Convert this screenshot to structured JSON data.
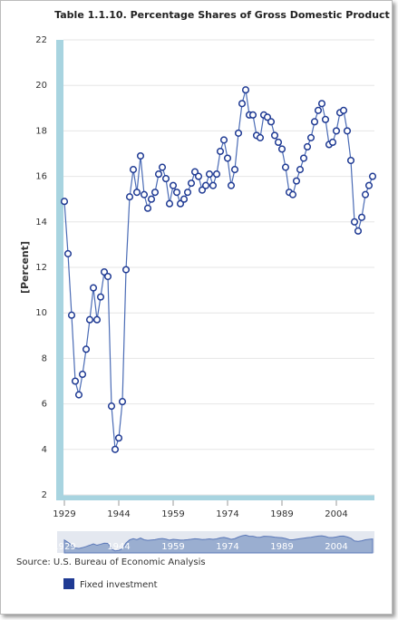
{
  "chart_data": {
    "type": "line",
    "title": "Table 1.1.10. Percentage Shares of Gross Domestic Product",
    "y_label": "[Percent]",
    "source": "Source: U.S. Bureau of Economic Analysis",
    "x": [
      1929,
      1930,
      1931,
      1932,
      1933,
      1934,
      1935,
      1936,
      1937,
      1938,
      1939,
      1940,
      1941,
      1942,
      1943,
      1944,
      1945,
      1946,
      1947,
      1948,
      1949,
      1950,
      1951,
      1952,
      1953,
      1954,
      1955,
      1956,
      1957,
      1958,
      1959,
      1960,
      1961,
      1962,
      1963,
      1964,
      1965,
      1966,
      1967,
      1968,
      1969,
      1970,
      1971,
      1972,
      1973,
      1974,
      1975,
      1976,
      1977,
      1978,
      1979,
      1980,
      1981,
      1982,
      1983,
      1984,
      1985,
      1986,
      1987,
      1988,
      1989,
      1990,
      1991,
      1992,
      1993,
      1994,
      1995,
      1996,
      1997,
      1998,
      1999,
      2000,
      2001,
      2002,
      2003,
      2004,
      2005,
      2006,
      2007,
      2008,
      2009,
      2010,
      2011,
      2012,
      2013,
      2014
    ],
    "series": [
      {
        "name": "Fixed investment",
        "color": "#1f3a93",
        "values": [
          14.9,
          12.6,
          9.9,
          7.0,
          6.4,
          7.3,
          8.4,
          9.7,
          11.1,
          9.7,
          10.7,
          11.8,
          11.6,
          5.9,
          4.0,
          4.5,
          6.1,
          11.9,
          15.1,
          16.3,
          15.3,
          16.9,
          15.2,
          14.6,
          15.0,
          15.3,
          16.1,
          16.4,
          15.9,
          14.8,
          15.6,
          15.3,
          14.8,
          15.0,
          15.3,
          15.7,
          16.2,
          16.0,
          15.4,
          15.6,
          16.1,
          15.6,
          16.1,
          17.1,
          17.6,
          16.8,
          15.6,
          16.3,
          17.9,
          19.2,
          19.8,
          18.7,
          18.7,
          17.8,
          17.7,
          18.7,
          18.6,
          18.4,
          17.8,
          17.5,
          17.2,
          16.4,
          15.3,
          15.2,
          15.8,
          16.3,
          16.8,
          17.3,
          17.7,
          18.4,
          18.9,
          19.2,
          18.5,
          17.4,
          17.5,
          18.0,
          18.8,
          18.9,
          18.0,
          16.7,
          14.0,
          13.6,
          14.2,
          15.2,
          15.6,
          16.0
        ]
      }
    ],
    "xlim": [
      1927,
      2014.5
    ],
    "xticks": [
      1929,
      1944,
      1959,
      1974,
      1989,
      2004
    ],
    "ylim": [
      2,
      22
    ],
    "yticks": [
      2,
      4,
      6,
      8,
      10,
      12,
      14,
      16,
      18,
      20,
      22
    ],
    "grid": true
  }
}
